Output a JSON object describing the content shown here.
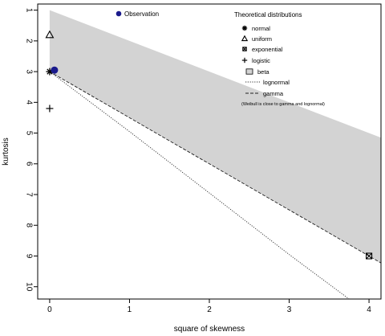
{
  "chart_data": {
    "type": "scatter",
    "title": "",
    "xlabel": "square of skewness",
    "ylabel": "kurtosis",
    "xlim": [
      -0.15,
      4.15
    ],
    "ylim": [
      10.4,
      0.8
    ],
    "y_reversed": true,
    "x_ticks": [
      0,
      1,
      2,
      3,
      4
    ],
    "y_ticks": [
      1,
      2,
      3,
      4,
      5,
      6,
      7,
      8,
      9,
      10
    ],
    "grid": false,
    "beta_region": {
      "upper": [
        [
          0,
          1.0
        ],
        [
          4.15,
          5.15
        ]
      ],
      "lower": [
        [
          0,
          3.0
        ],
        [
          4.15,
          9.225
        ]
      ],
      "color": "#d3d3d3"
    },
    "lognormal_curve": [
      [
        0,
        3.0
      ],
      [
        1,
        4.95
      ],
      [
        2,
        6.95
      ],
      [
        3,
        8.95
      ],
      [
        3.75,
        10.4
      ]
    ],
    "gamma_curve": [
      [
        0,
        3.0
      ],
      [
        4.15,
        9.225
      ]
    ],
    "observation": {
      "name": "Observation",
      "x": 0.06,
      "y": 2.95,
      "color": "#1a1a8c"
    },
    "theoretical_points": [
      {
        "name": "normal",
        "x": 0,
        "y": 3.0,
        "symbol": "asterisk"
      },
      {
        "name": "uniform",
        "x": 0,
        "y": 1.8,
        "symbol": "triangle"
      },
      {
        "name": "exponential",
        "x": 4,
        "y": 9,
        "symbol": "boxed-x"
      },
      {
        "name": "logistic",
        "x": 0,
        "y": 4.2,
        "symbol": "plus"
      }
    ],
    "legend": {
      "placement": "top",
      "title": "Theoretical distributions",
      "entries": [
        {
          "label": "normal",
          "symbol": "asterisk"
        },
        {
          "label": "uniform",
          "symbol": "triangle"
        },
        {
          "label": "exponential",
          "symbol": "boxed-x"
        },
        {
          "label": "logistic",
          "symbol": "plus"
        },
        {
          "label": "beta",
          "symbol": "gray-box"
        },
        {
          "label": "lognormal",
          "symbol": "dotted-line"
        },
        {
          "label": "gamma",
          "symbol": "dashed-line"
        }
      ],
      "note": "(Weibull is close to gamma and lognormal)"
    }
  }
}
